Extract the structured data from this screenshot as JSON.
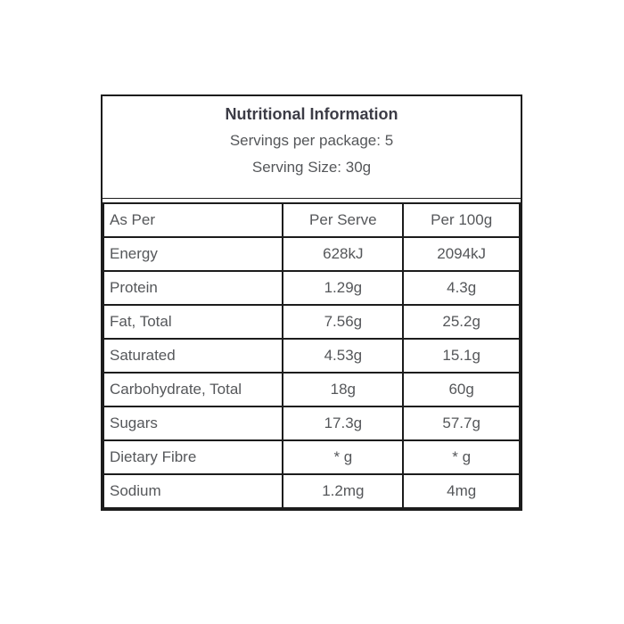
{
  "label": {
    "title": "Nutritional Information",
    "servings_line": "Servings per package: 5",
    "serving_size_line": "Serving Size: 30g"
  },
  "table": {
    "headers": [
      "As Per",
      "Per Serve",
      "Per 100g"
    ],
    "rows": [
      {
        "name": "Energy",
        "per_serve": "628kJ",
        "per_100g": "2094kJ",
        "indent": false
      },
      {
        "name": "Protein",
        "per_serve": "1.29g",
        "per_100g": "4.3g",
        "indent": false
      },
      {
        "name": "Fat, Total",
        "per_serve": "7.56g",
        "per_100g": "25.2g",
        "indent": false
      },
      {
        "name": "Saturated",
        "per_serve": "4.53g",
        "per_100g": "15.1g",
        "indent": true
      },
      {
        "name": "Carbohydrate, Total",
        "per_serve": "18g",
        "per_100g": "60g",
        "indent": false
      },
      {
        "name": "Sugars",
        "per_serve": "17.3g",
        "per_100g": "57.7g",
        "indent": true
      },
      {
        "name": "Dietary Fibre",
        "per_serve": "* g",
        "per_100g": "* g",
        "indent": false
      },
      {
        "name": "Sodium",
        "per_serve": "1.2mg",
        "per_100g": "4mg",
        "indent": false
      }
    ]
  },
  "colors": {
    "border": "#1c1c1c",
    "title_text": "#3c3c46",
    "body_text": "#55575a",
    "background": "#ffffff"
  }
}
